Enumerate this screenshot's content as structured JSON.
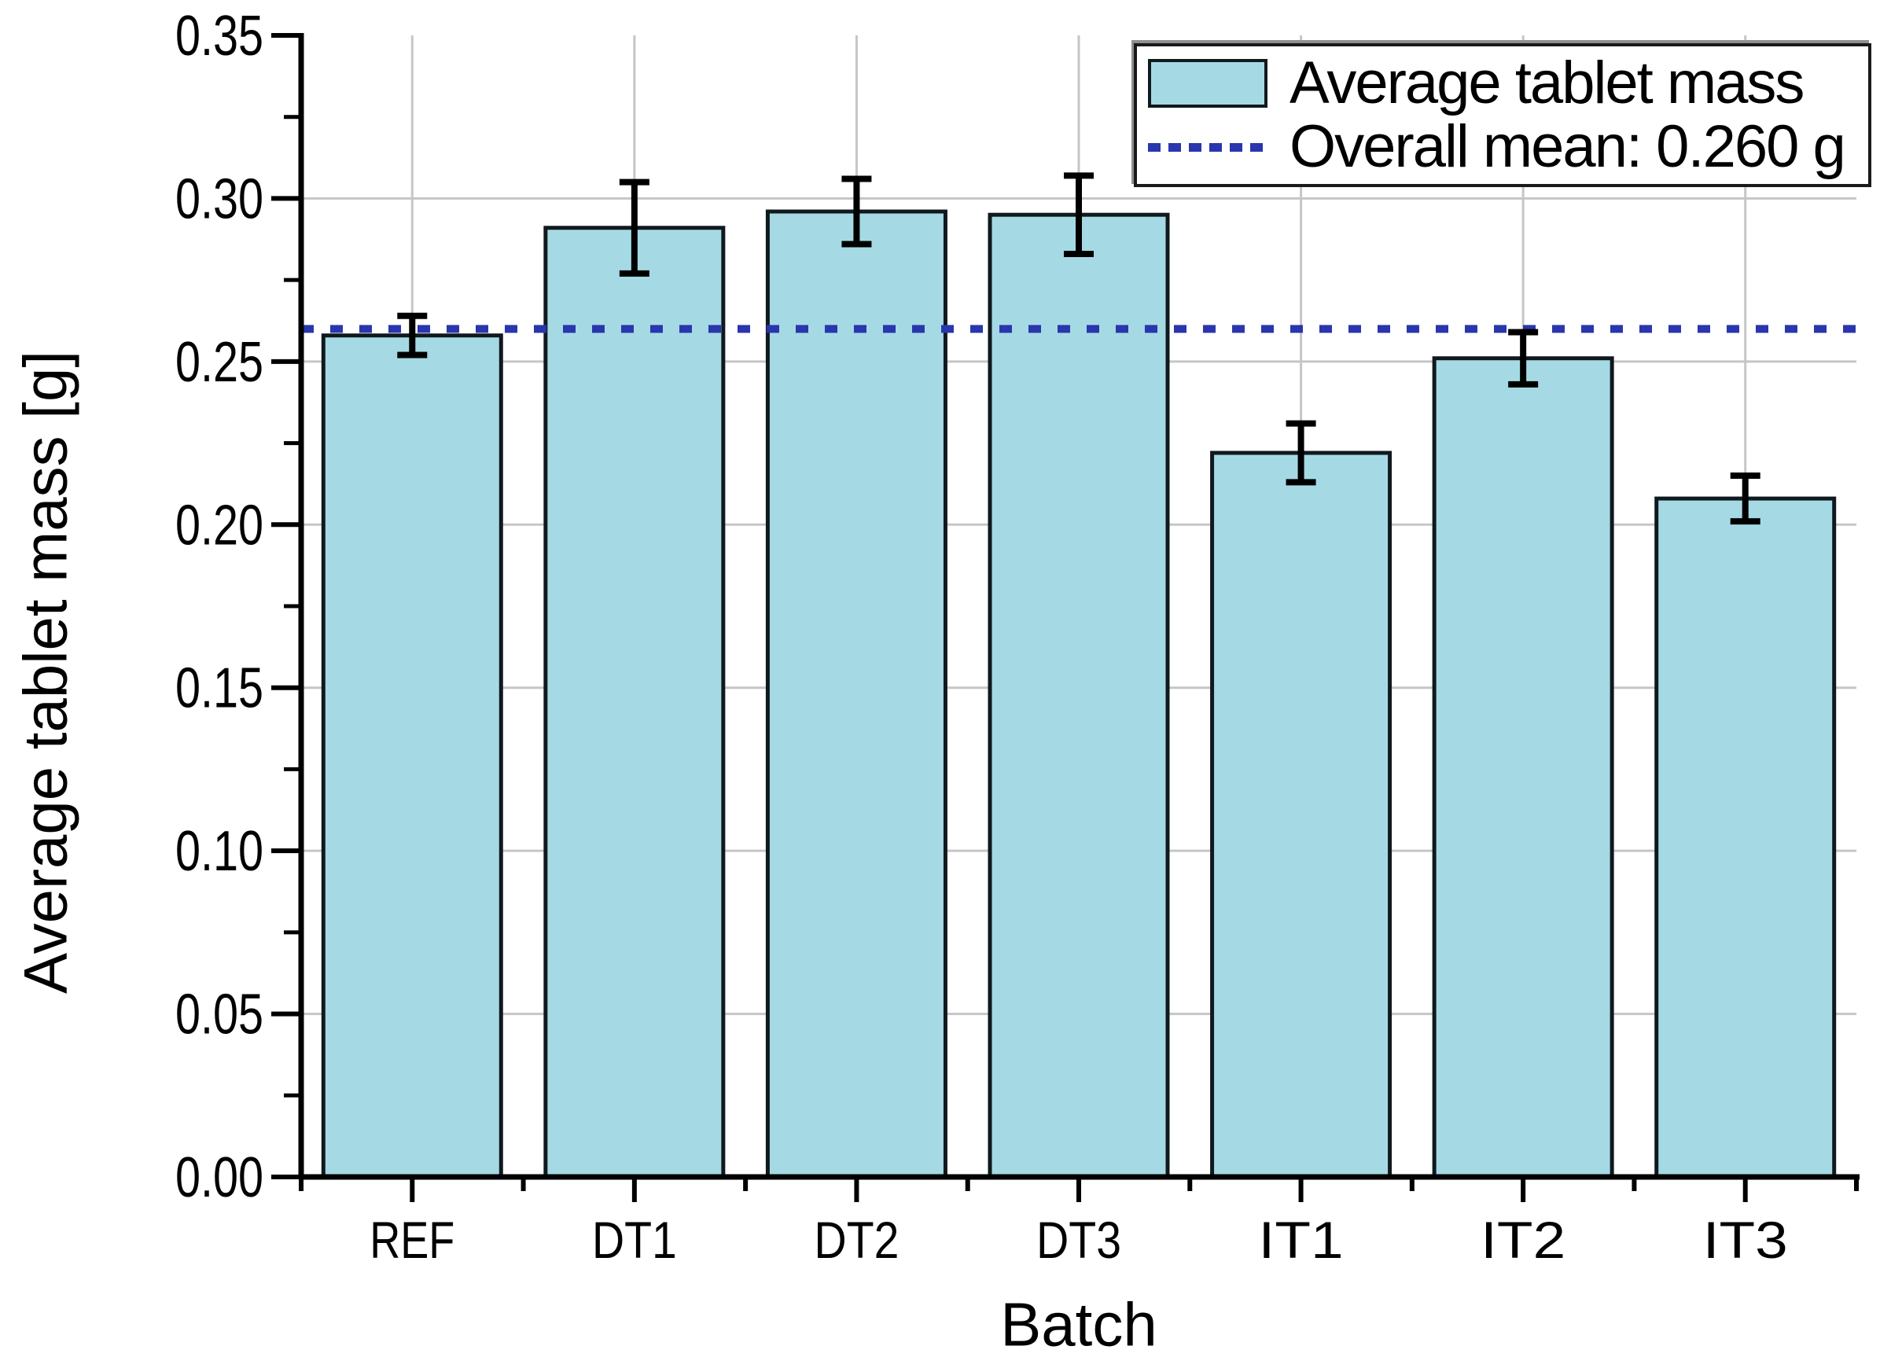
{
  "chart_data": {
    "type": "bar",
    "title": "",
    "xlabel": "Batch",
    "ylabel": "Average tablet mass [g]",
    "categories": [
      "REF",
      "DT1",
      "DT2",
      "DT3",
      "IT1",
      "IT2",
      "IT3"
    ],
    "values": [
      0.258,
      0.291,
      0.296,
      0.295,
      0.222,
      0.251,
      0.208
    ],
    "errors": [
      0.006,
      0.014,
      0.01,
      0.012,
      0.009,
      0.008,
      0.007
    ],
    "series_label": "Average tablet mass",
    "overall_mean": 0.26,
    "overall_mean_label": "Overall mean: 0.260 g",
    "ylim": [
      0,
      0.35
    ],
    "y_major_step": 0.05,
    "y_minor_step": 0.025,
    "y_tick_labels": [
      "0.00",
      "0.05",
      "0.10",
      "0.15",
      "0.20",
      "0.25",
      "0.30",
      "0.35"
    ],
    "grid": {
      "horizontal_major": true,
      "vertical_at_category_centers": true
    },
    "legend_position": "top-right"
  },
  "legend": {
    "bar_label": "Average tablet mass",
    "mean_label": "Overall mean: 0.260 g"
  },
  "colors": {
    "background": "#ffffff",
    "bar_fill": "#a5dae4",
    "bar_border": "#10191e",
    "error_bar": "#000000",
    "mean_line": "#2936ad",
    "gridline": "#c6c6c6",
    "axis": "#000000",
    "text": "#000000"
  }
}
